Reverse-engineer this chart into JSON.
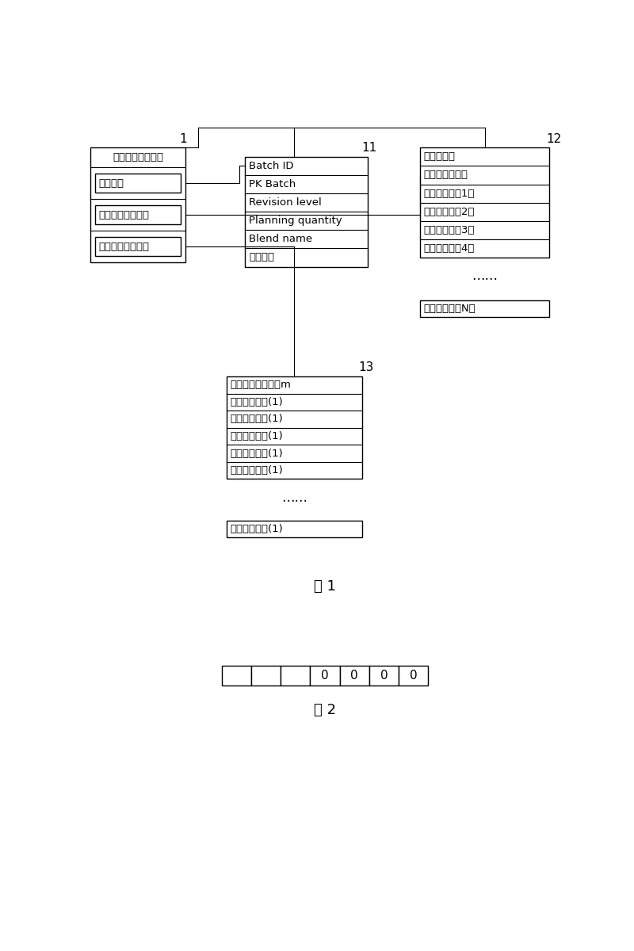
{
  "bg_color": "#ffffff",
  "fig_label1": "图 1",
  "fig_label2": "图 2",
  "box1_label": "1",
  "box1_title": "批次任务数据结构",
  "box1_rows": [
    "批次报头",
    "批次工艺控制结构",
    "批次工艺配方数据"
  ],
  "box11_label": "11",
  "box11_rows": [
    "Batch ID",
    "PK Batch",
    "Revision level",
    "Planning quantity",
    "Blend name",
    "批次属性"
  ],
  "box12_label": "12",
  "box12_rows": [
    "工序控制字",
    "设定值强制代码",
    "特定设定值（1）",
    "特定设定值（2）",
    "特定设定值（3）",
    "特定设定值（4）"
  ],
  "box12_standalone": "特定设定值（N）",
  "box13_label": "13",
  "box13_rows": [
    "中间产品种类数量m",
    "中间产品编码(1)",
    "中间产品编码(1)",
    "中间产品编码(1)",
    "中间产品编码(1)",
    "中间产品编码(1)"
  ],
  "box13_standalone": "中间产品编码(1)",
  "ellipsis": "……",
  "font_size_row": 9.5,
  "font_size_label": 11,
  "font_size_figcap": 13,
  "n_cells": 7,
  "n_filled": 4,
  "cell_label": "0"
}
